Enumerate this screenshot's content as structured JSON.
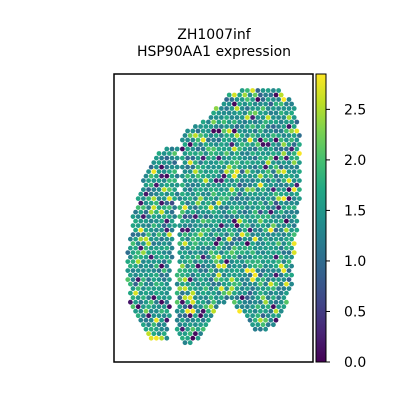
{
  "chart_data": {
    "type": "scatter",
    "title_line1": "ZH1007inf",
    "title_line2": "HSP90AA1 expression",
    "xlabel": "",
    "ylabel": "",
    "grid": false,
    "axis_ticks_shown": false,
    "value_range": [
      0.0,
      2.85
    ],
    "colormap": "viridis",
    "colorbar": {
      "ticks": [
        0.0,
        0.5,
        1.0,
        1.5,
        2.0,
        2.5
      ],
      "tick_labels": [
        "0.0",
        "0.5",
        "1.0",
        "1.5",
        "2.0",
        "2.5"
      ],
      "placement": "right"
    },
    "typical_value": 1.5,
    "note_values": "spatial spot expression values, approx. 0.0–2.85; most spots in 1.0–2.0"
  },
  "colors": {
    "frame": "#000000",
    "background": "#ffffff",
    "viridis_low": "#440154",
    "viridis_mid": "#21918c",
    "viridis_high": "#fde725"
  }
}
